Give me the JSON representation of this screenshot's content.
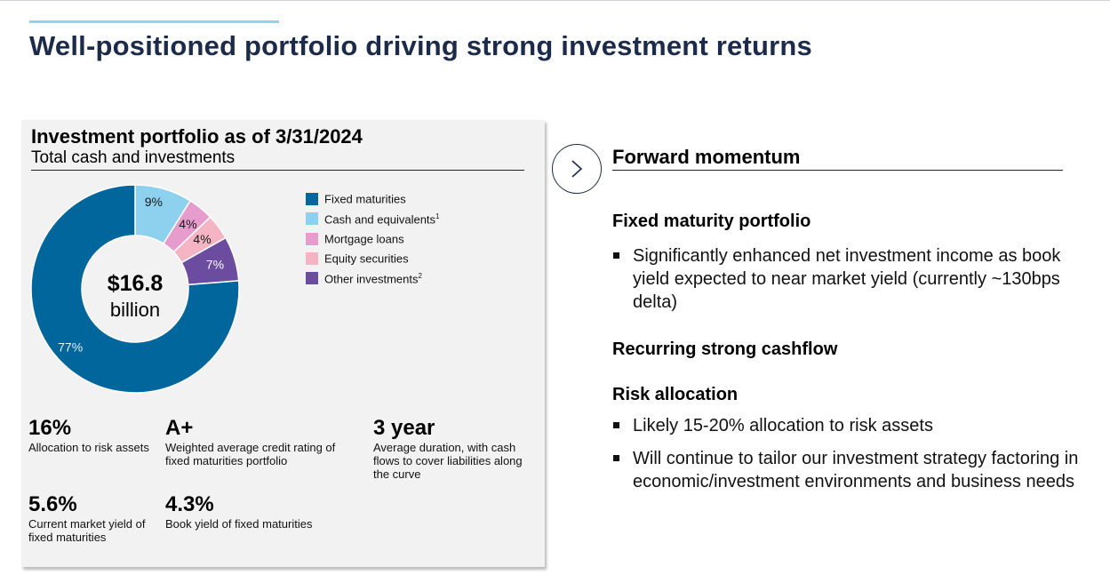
{
  "slide": {
    "title": "Well-positioned portfolio driving strong investment returns",
    "accent_color": "#8fd3ee",
    "title_color": "#1c2b4a"
  },
  "portfolio": {
    "title": "Investment portfolio as of 3/31/2024",
    "subtitle": "Total cash and investments",
    "total_amount": "$16.8",
    "total_unit": "billion"
  },
  "chart_data": {
    "type": "pie",
    "donut": true,
    "title": "Investment portfolio as of 3/31/2024",
    "subtitle": "Total cash and investments",
    "center_text": "$16.8 billion",
    "legend_position": "right",
    "slices": [
      {
        "label": "Fixed maturities",
        "footnote": "",
        "value": 77,
        "display": "77%",
        "color": "#00669b",
        "label_color": "#e6f1f8"
      },
      {
        "label": "Cash and equivalents",
        "footnote": "1",
        "value": 9,
        "display": "9%",
        "color": "#8dd1ef",
        "label_color": "#1a1a1a"
      },
      {
        "label": "Mortgage loans",
        "footnote": "",
        "value": 4,
        "display": "4%",
        "color": "#e69ccc",
        "label_color": "#1a1a1a"
      },
      {
        "label": "Equity securities",
        "footnote": "",
        "value": 4,
        "display": "4%",
        "color": "#f5b4c4",
        "label_color": "#1a1a1a"
      },
      {
        "label": "Other investments",
        "footnote": "2",
        "value": 7,
        "display": "7%",
        "color": "#6b4c9e",
        "label_color": "#ffffff"
      }
    ]
  },
  "stats": [
    {
      "value": "16%",
      "desc": "Allocation to risk assets"
    },
    {
      "value": "A+",
      "desc": "Weighted average credit rating of fixed maturities portfolio"
    },
    {
      "value": "3 year",
      "desc": "Average duration, with cash flows to cover liabilities along the curve"
    },
    {
      "value": "5.6%",
      "desc": "Current market yield of fixed maturities"
    },
    {
      "value": "4.3%",
      "desc": "Book yield of fixed maturities"
    }
  ],
  "forward": {
    "title": "Forward momentum",
    "icon": "chevron-right-icon",
    "sections": [
      {
        "heading": "Fixed maturity portfolio",
        "bullets": [
          "Significantly enhanced net investment income as book yield expected to near market yield (currently ~130bps delta)"
        ]
      },
      {
        "heading": "Recurring strong cashflow",
        "bullets": []
      },
      {
        "heading": "Risk allocation",
        "bullets": [
          "Likely 15-20% allocation to risk assets",
          "Will continue to tailor our investment strategy factoring in economic/investment environments and business needs"
        ]
      }
    ]
  }
}
